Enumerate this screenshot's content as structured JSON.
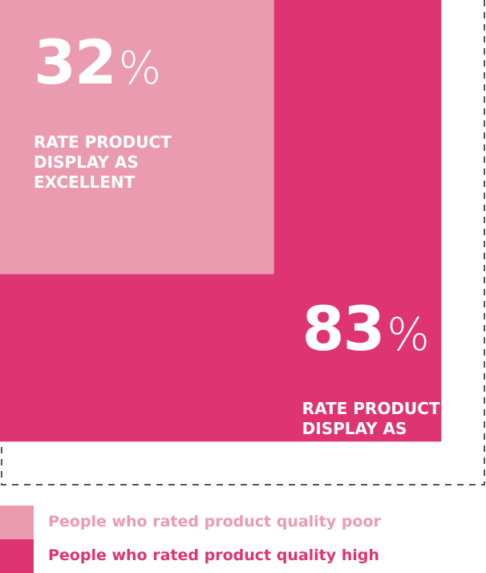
{
  "chart_data": {
    "type": "nested-square",
    "unit": "%",
    "series": [
      {
        "name": "People who rated product quality poor",
        "color": "#eb9bb0",
        "values": [
          32
        ],
        "caption": "RATE PRODUCT DISPLAY AS EXCELLENT"
      },
      {
        "name": "People who rated product quality high",
        "color": "#de3471",
        "values": [
          83
        ],
        "caption": "RATE PRODUCT DISPLAY AS EXCELLENT"
      }
    ]
  }
}
